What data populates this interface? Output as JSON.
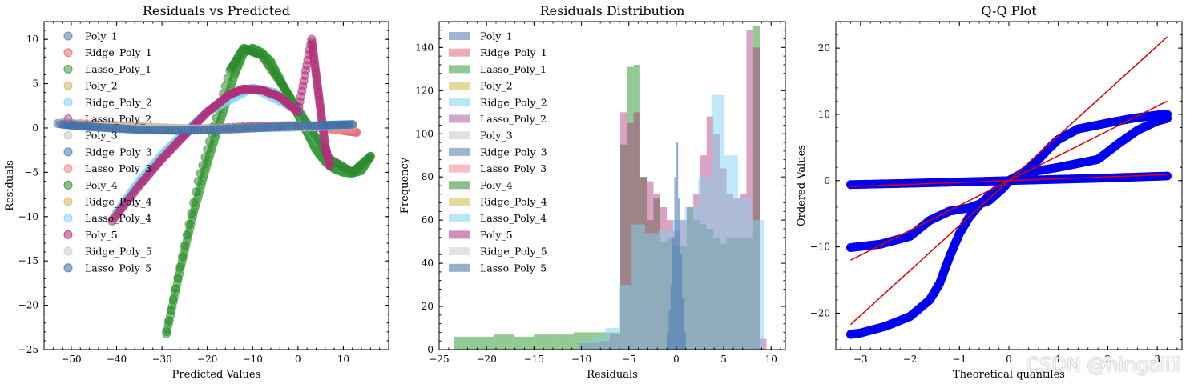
{
  "watermark": "CSDN @hingaiiii",
  "chart_data": [
    {
      "type": "scatter",
      "title": "Residuals vs Predicted",
      "xlabel": "Predicted Values",
      "ylabel": "Residuals",
      "xlim": [
        -56,
        20
      ],
      "ylim": [
        -25,
        12
      ],
      "xticks": [
        -50,
        -40,
        -30,
        -20,
        -10,
        0,
        10
      ],
      "yticks": [
        -25,
        -20,
        -15,
        -10,
        -5,
        0,
        5,
        10
      ],
      "legend_position": "upper-left",
      "series": [
        {
          "name": "Poly_1",
          "color": "#4e79b3",
          "x": [
            -53,
            -45,
            -35,
            -25,
            -15,
            -5,
            5,
            12
          ],
          "y": [
            0.5,
            0.2,
            -0.1,
            -0.2,
            -0.1,
            0.1,
            0.2,
            0.3
          ]
        },
        {
          "name": "Ridge_Poly_1",
          "color": "#e06c75",
          "x": [
            -52,
            -40,
            -25,
            -10,
            0,
            10,
            13
          ],
          "y": [
            0.6,
            0.1,
            -0.3,
            0.2,
            0.3,
            -0.3,
            -0.5
          ]
        },
        {
          "name": "Lasso_Poly_1",
          "color": "#3a9c3a",
          "x": [
            -29,
            -26,
            -23,
            -20,
            -17,
            -14,
            -12,
            -10,
            -8,
            -6,
            -4,
            -2,
            0,
            2,
            4,
            6,
            8,
            10,
            12,
            14,
            16
          ],
          "y": [
            -23.2,
            -16,
            -9.5,
            -4,
            1,
            6,
            8.5,
            9,
            8.5,
            7.5,
            5.5,
            3.5,
            1.5,
            -0.5,
            -2.5,
            -3.8,
            -4.6,
            -5,
            -5.1,
            -4.8,
            -3.2
          ]
        },
        {
          "name": "Poly_2",
          "color": "#d4b94b",
          "x": [
            -50,
            -30,
            -10,
            10
          ],
          "y": [
            0.3,
            -0.1,
            0.1,
            0.2
          ]
        },
        {
          "name": "Ridge_Poly_2",
          "color": "#7fd3f0",
          "x": [
            -40,
            -35,
            -30,
            -25,
            -20,
            -15,
            -10,
            -5,
            0,
            5
          ],
          "y": [
            -9.5,
            -6,
            -3,
            -0.5,
            1.8,
            3.6,
            4.5,
            4,
            2,
            -2
          ]
        },
        {
          "name": "Lasso_Poly_2",
          "color": "#b05c9a",
          "x": [
            -51,
            -40,
            -25,
            -10,
            5,
            12
          ],
          "y": [
            0.4,
            0.1,
            -0.2,
            0.2,
            0.1,
            0
          ]
        },
        {
          "name": "Poly_3",
          "color": "#c8c8c8",
          "x": [
            -52,
            -40,
            -28,
            -15,
            -3,
            8,
            12
          ],
          "y": [
            0.6,
            0.3,
            0,
            -0.1,
            0.1,
            0.3,
            0.2
          ]
        },
        {
          "name": "Ridge_Poly_3",
          "color": "#4e79b3",
          "x": [
            -50,
            -38,
            -25,
            -12,
            0,
            10
          ],
          "y": [
            0.4,
            0.1,
            -0.2,
            0,
            0.2,
            0.1
          ]
        },
        {
          "name": "Lasso_Poly_3",
          "color": "#f08a8f",
          "x": [
            -48,
            -30,
            -15,
            0,
            12
          ],
          "y": [
            0.5,
            0,
            -0.2,
            0.3,
            -0.2
          ]
        },
        {
          "name": "Poly_4",
          "color": "#2e8b2e",
          "x": [
            -29,
            -22,
            -15,
            -12,
            -8,
            -3,
            2,
            7,
            12,
            16
          ],
          "y": [
            -23,
            -6,
            6.5,
            9,
            8.2,
            4.5,
            0.5,
            -3.5,
            -5,
            -3.2
          ]
        },
        {
          "name": "Ridge_Poly_4",
          "color": "#d4b94b",
          "x": [
            -45,
            -20,
            5
          ],
          "y": [
            0.2,
            -0.1,
            0.2
          ]
        },
        {
          "name": "Lasso_Poly_4",
          "color": "#7fd3f0",
          "x": [
            -40,
            -30,
            -20,
            -10,
            0
          ],
          "y": [
            -9.5,
            -3,
            1.8,
            4.5,
            2
          ]
        },
        {
          "name": "Poly_5",
          "color": "#b0307a",
          "x": [
            -41,
            -35,
            -30,
            -25,
            -20,
            -15,
            -12,
            -8,
            -4,
            0,
            3,
            4,
            5,
            6,
            7
          ],
          "y": [
            -10.5,
            -6.5,
            -3.5,
            -0.8,
            1.8,
            3.8,
            4.4,
            4.3,
            3.5,
            1.8,
            10,
            6,
            2,
            -2,
            -4.3
          ]
        },
        {
          "name": "Ridge_Poly_5",
          "color": "#cccccc",
          "x": [
            -50,
            -35,
            -20,
            -5,
            10
          ],
          "y": [
            0.3,
            0,
            -0.1,
            0,
            0.2
          ]
        },
        {
          "name": "Lasso_Poly_5",
          "color": "#3d6fa8",
          "x": [
            -52,
            -45,
            -35,
            -25,
            -15,
            -5,
            5,
            12
          ],
          "y": [
            0.4,
            0.1,
            -0.2,
            -0.3,
            -0.1,
            0.1,
            0.3,
            0.4
          ]
        }
      ]
    },
    {
      "type": "bar",
      "title": "Residuals Distribution",
      "xlabel": "Residuals",
      "ylabel": "Frequency",
      "xlim": [
        -25,
        11.5
      ],
      "ylim": [
        0,
        152
      ],
      "xticks": [
        -25,
        -20,
        -15,
        -10,
        -5,
        0,
        5,
        10
      ],
      "yticks": [
        0,
        20,
        40,
        60,
        80,
        100,
        120,
        140
      ],
      "legend_position": "upper-left",
      "legend": [
        "Poly_1",
        "Ridge_Poly_1",
        "Lasso_Poly_1",
        "Poly_2",
        "Ridge_Poly_2",
        "Lasso_Poly_2",
        "Poly_3",
        "Ridge_Poly_3",
        "Lasso_Poly_3",
        "Poly_4",
        "Ridge_Poly_4",
        "Lasso_Poly_4",
        "Poly_5",
        "Ridge_Poly_5",
        "Lasso_Poly_5"
      ],
      "legend_colors": [
        "#4e79b3",
        "#e06c75",
        "#3a9c3a",
        "#d4b94b",
        "#7fd3f0",
        "#b05c9a",
        "#c8c8c8",
        "#4e79b3",
        "#f08a8f",
        "#2e8b2e",
        "#d4b94b",
        "#7fd3f0",
        "#b0307a",
        "#cccccc",
        "#3d6fa8"
      ],
      "series": [
        {
          "name": "Lasso_Poly_1",
          "color": "#3a9c3a",
          "opacity": 0.55,
          "bin_edges": [
            -23.4,
            -21.3,
            -19.2,
            -17.1,
            -15,
            -12.9,
            -10.8,
            -8.7,
            -6.6,
            -5.9,
            -5.2,
            -4.5,
            -3.8,
            -3.1,
            -2.4,
            -1.7,
            -1.0,
            -0.3,
            0.4,
            1.1,
            1.8,
            2.5,
            3.2,
            3.9,
            4.6,
            5.3,
            6.0,
            6.7,
            7.4,
            8.1,
            8.8
          ],
          "counts": [
            6,
            6,
            7,
            6,
            7,
            7,
            8,
            8,
            8,
            95,
            131,
            132,
            80,
            60,
            70,
            50,
            52,
            48,
            48,
            66,
            60,
            58,
            56,
            52,
            49,
            52,
            52,
            52,
            52,
            150
          ]
        },
        {
          "name": "Poly_5",
          "color": "#b0307a",
          "opacity": 0.45,
          "bin_edges": [
            -10.3,
            -9.2,
            -8.1,
            -7.0,
            -5.9,
            -5.2,
            -4.5,
            -3.8,
            -3.1,
            -2.4,
            -1.7,
            -1.0,
            -0.3,
            0.4,
            1.1,
            1.8,
            2.5,
            3.2,
            3.9,
            4.6,
            5.3,
            6.0,
            6.7,
            7.4,
            8.1,
            8.8,
            9.5
          ],
          "counts": [
            3,
            3,
            4,
            7,
            110,
            105,
            110,
            80,
            78,
            72,
            66,
            60,
            55,
            60,
            66,
            72,
            90,
            108,
            100,
            84,
            72,
            70,
            72,
            148,
            140,
            5
          ]
        },
        {
          "name": "Ridge_Poly_2",
          "color": "#7fd3f0",
          "opacity": 0.5,
          "bin_edges": [
            -10.3,
            -8.9,
            -7.5,
            -6.1,
            -4.7,
            -3.3,
            -1.9,
            -0.5,
            0.9,
            2.3,
            3.7,
            5.1,
            6.5,
            7.9,
            9.3
          ],
          "counts": [
            4,
            6,
            10,
            30,
            58,
            54,
            55,
            60,
            66,
            80,
            118,
            90,
            70,
            60
          ]
        },
        {
          "name": "Poly_1",
          "color": "#4e79b3",
          "opacity": 0.6,
          "bin_edges": [
            -1.0,
            -0.8,
            -0.6,
            -0.4,
            -0.2,
            0,
            0.2,
            0.4,
            0.6,
            0.8,
            1.0
          ],
          "counts": [
            8,
            18,
            30,
            52,
            80,
            96,
            70,
            44,
            24,
            8
          ]
        }
      ]
    },
    {
      "type": "scatter",
      "title": "Q-Q Plot",
      "xlabel": "Theoretical quantiles",
      "ylabel": "Ordered Values",
      "xlim": [
        -3.5,
        3.5
      ],
      "ylim": [
        -25.5,
        24
      ],
      "xticks": [
        -3,
        -2,
        -1,
        0,
        1,
        2,
        3
      ],
      "yticks": [
        -20,
        -10,
        0,
        10,
        20
      ],
      "point_color": "#0000ee",
      "line_color": "#e00000",
      "lines": [
        {
          "x": [
            -3.2,
            3.2
          ],
          "y": [
            -21.7,
            21.7
          ]
        },
        {
          "x": [
            -3.2,
            3.2
          ],
          "y": [
            -12,
            12
          ]
        },
        {
          "x": [
            -3.2,
            3.2
          ],
          "y": [
            -0.9,
            0.9
          ]
        }
      ],
      "series": [
        {
          "x": [
            -3.2,
            -3.0,
            -2.5,
            -2.0,
            -1.6,
            -1.4,
            -1.2,
            -1.0,
            -0.8,
            -0.6,
            -0.4,
            -0.2,
            0,
            0.2,
            0.4,
            0.6,
            0.8,
            1.0,
            1.4,
            2.0,
            2.5,
            3.0,
            3.2
          ],
          "y": [
            -23.2,
            -23,
            -22,
            -20.5,
            -18,
            -15.5,
            -11.5,
            -8,
            -5.5,
            -3.7,
            -2.3,
            -1.1,
            0,
            0.8,
            1.8,
            3.2,
            4.8,
            6.2,
            7.8,
            8.7,
            9.4,
            9.9,
            10
          ]
        },
        {
          "x": [
            -3.2,
            -2.6,
            -2.0,
            -1.6,
            -1.2,
            -0.8,
            -0.4,
            -0.1,
            0,
            0.2,
            0.6,
            1.0,
            1.4,
            1.8,
            2.2,
            2.6,
            3.0,
            3.2
          ],
          "y": [
            -10.1,
            -9.6,
            -8.4,
            -6,
            -4.6,
            -4.1,
            -3,
            -1,
            0,
            0.8,
            1.5,
            2,
            2.6,
            3.2,
            5.5,
            7.6,
            9,
            9.4
          ]
        },
        {
          "x": [
            -3.2,
            -2.0,
            -1.0,
            0,
            1.0,
            2.0,
            3.2
          ],
          "y": [
            -0.6,
            -0.4,
            -0.2,
            0,
            0.2,
            0.4,
            0.7
          ]
        }
      ]
    }
  ]
}
